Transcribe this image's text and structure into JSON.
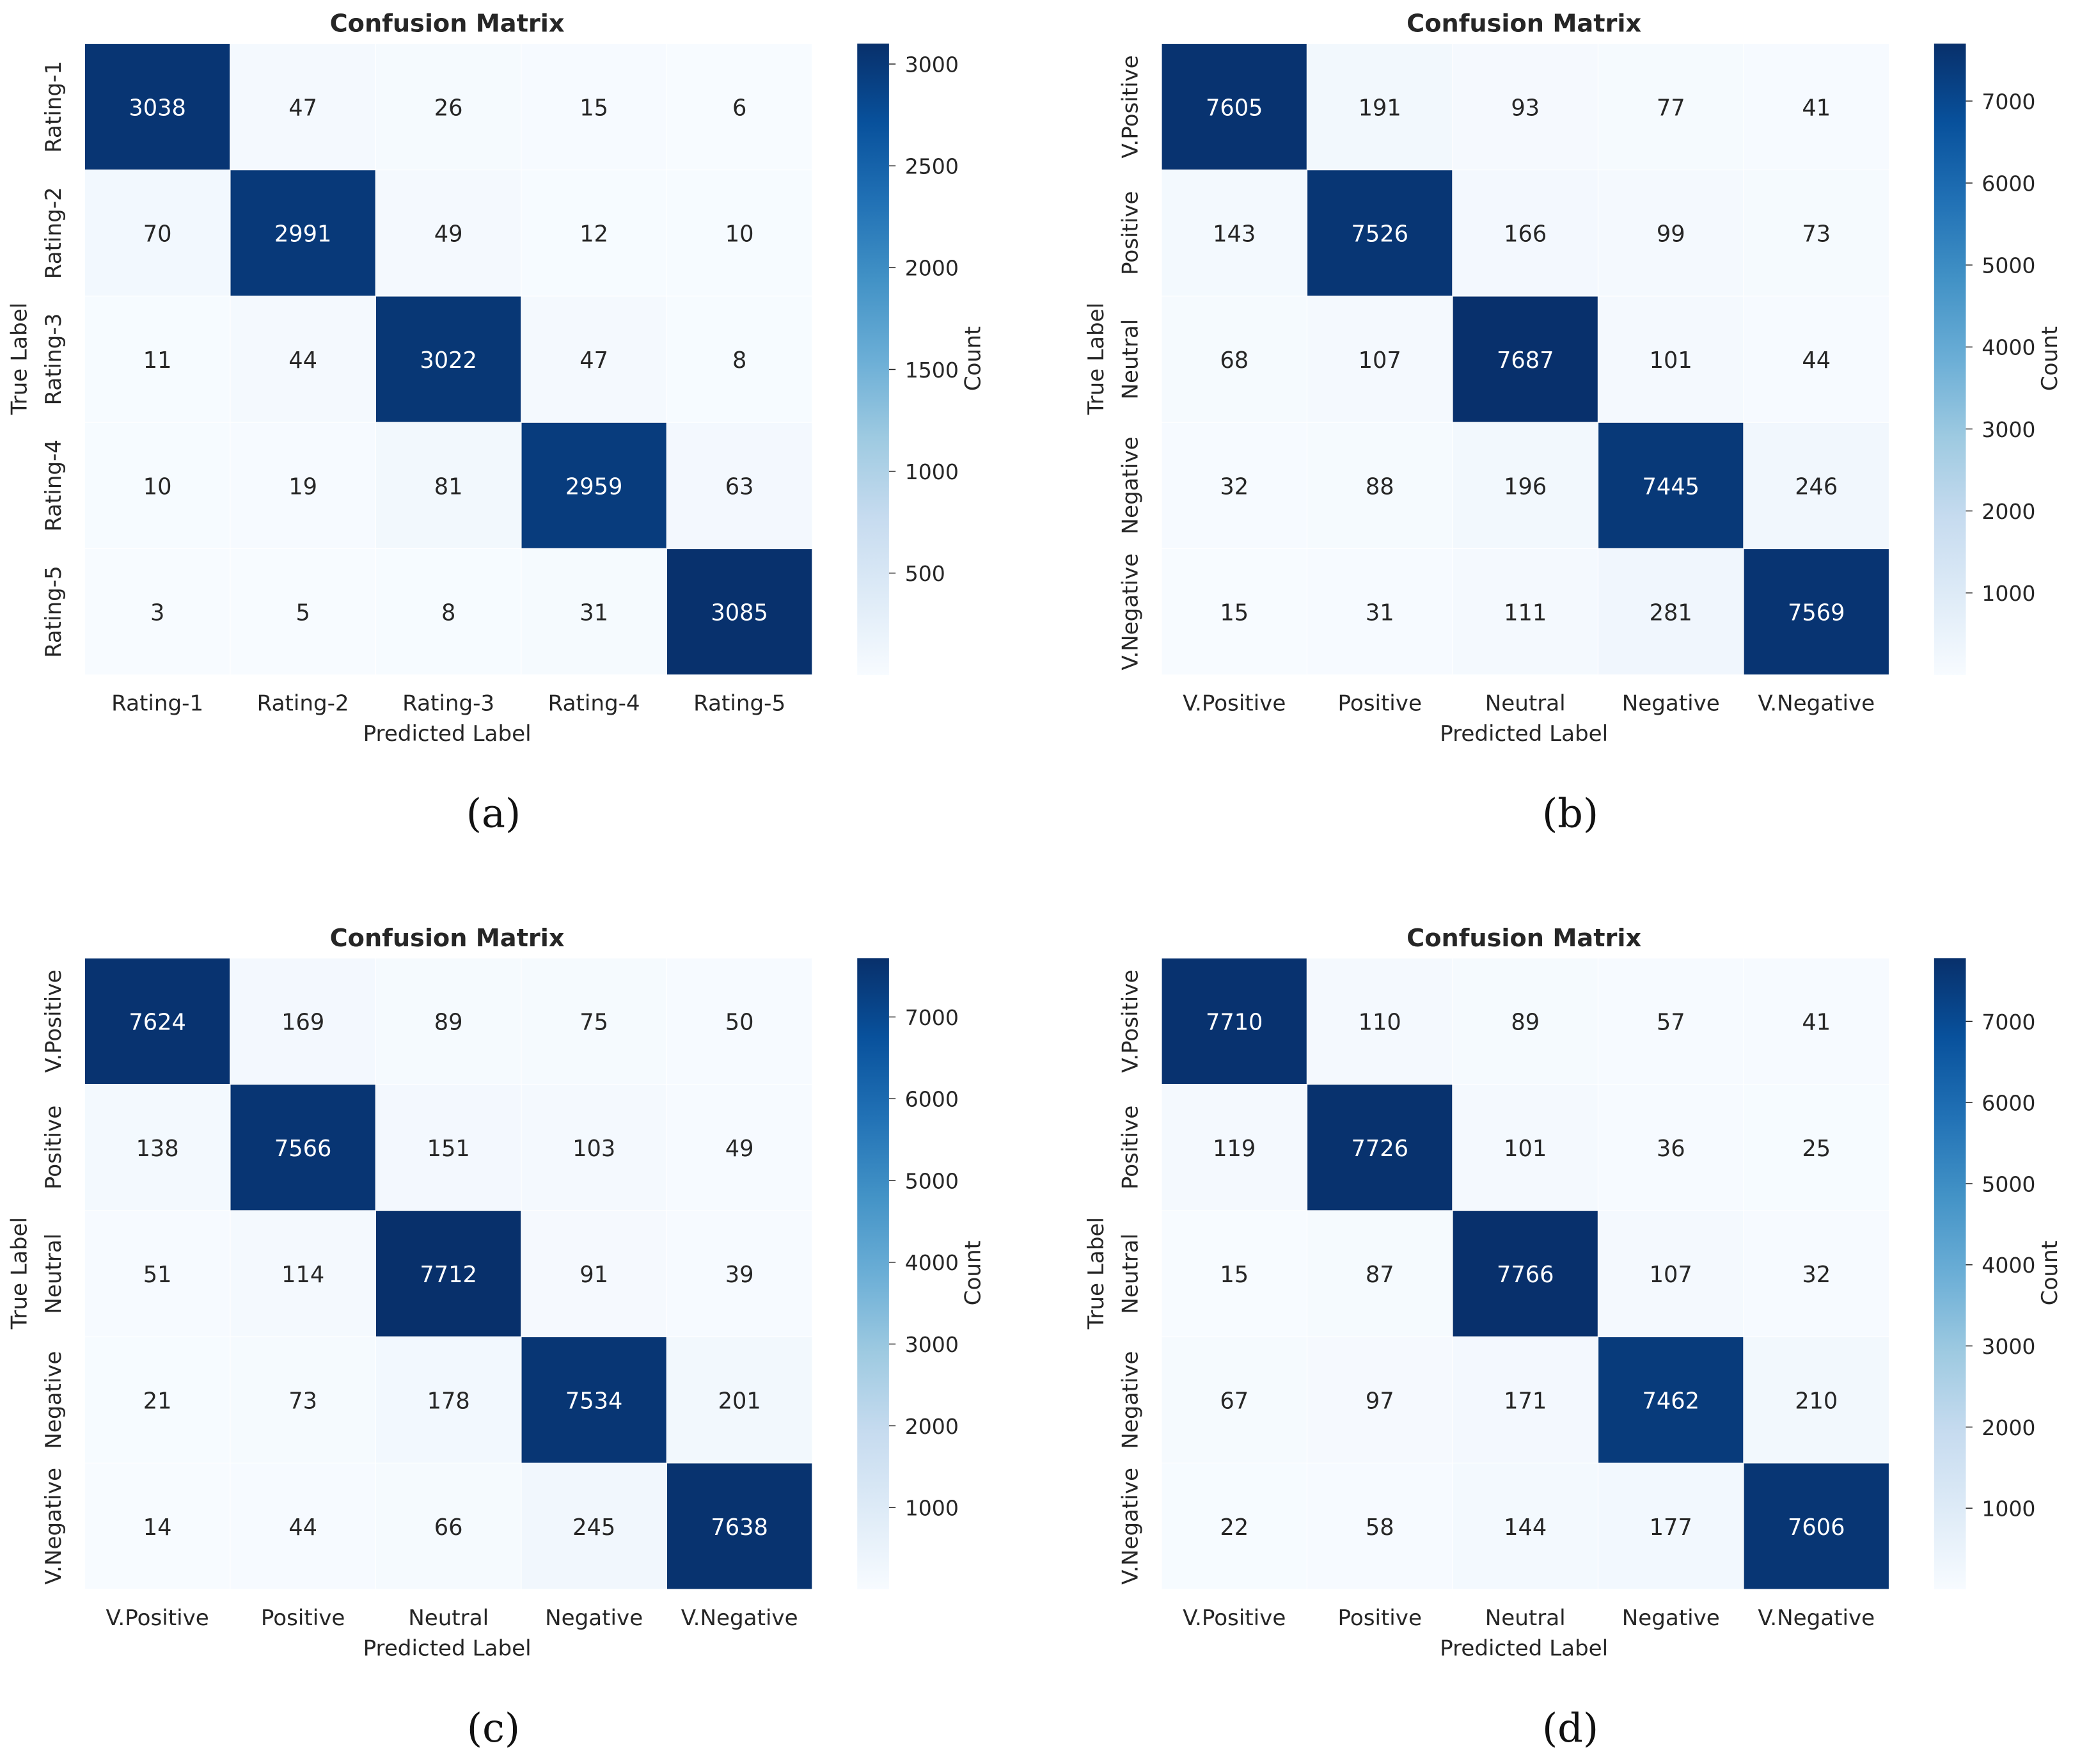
{
  "figure": {
    "panels": [
      "a",
      "b",
      "c",
      "d"
    ]
  },
  "chart_data": [
    {
      "type": "heatmap",
      "panel_label": "(a)",
      "title": "Confusion Matrix",
      "xlabel": "Predicted Label",
      "ylabel": "True Label",
      "colorbar_label": "Count",
      "colormap": "Blues",
      "x_categories": [
        "Rating-1",
        "Rating-2",
        "Rating-3",
        "Rating-4",
        "Rating-5"
      ],
      "y_categories": [
        "Rating-1",
        "Rating-2",
        "Rating-3",
        "Rating-4",
        "Rating-5"
      ],
      "values": [
        [
          3038,
          47,
          26,
          15,
          6
        ],
        [
          70,
          2991,
          49,
          12,
          10
        ],
        [
          11,
          44,
          3022,
          47,
          8
        ],
        [
          10,
          19,
          81,
          2959,
          63
        ],
        [
          3,
          5,
          8,
          31,
          3085
        ]
      ],
      "colorbar_ticks": [
        500,
        1000,
        1500,
        2000,
        2500,
        3000
      ],
      "color_range": [
        0,
        3100
      ]
    },
    {
      "type": "heatmap",
      "panel_label": "(b)",
      "title": "Confusion Matrix",
      "xlabel": "Predicted Label",
      "ylabel": "True Label",
      "colorbar_label": "Count",
      "colormap": "Blues",
      "x_categories": [
        "V.Positive",
        "Positive",
        "Neutral",
        "Negative",
        "V.Negative"
      ],
      "y_categories": [
        "V.Positive",
        "Positive",
        "Neutral",
        "Negative",
        "V.Negative"
      ],
      "values": [
        [
          7605,
          191,
          93,
          77,
          41
        ],
        [
          143,
          7526,
          166,
          99,
          73
        ],
        [
          68,
          107,
          7687,
          101,
          44
        ],
        [
          32,
          88,
          196,
          7445,
          246
        ],
        [
          15,
          31,
          111,
          281,
          7569
        ]
      ],
      "colorbar_ticks": [
        1000,
        2000,
        3000,
        4000,
        5000,
        6000,
        7000
      ],
      "color_range": [
        0,
        7700
      ]
    },
    {
      "type": "heatmap",
      "panel_label": "(c)",
      "title": "Confusion Matrix",
      "xlabel": "Predicted Label",
      "ylabel": "True Label",
      "colorbar_label": "Count",
      "colormap": "Blues",
      "x_categories": [
        "V.Positive",
        "Positive",
        "Neutral",
        "Negative",
        "V.Negative"
      ],
      "y_categories": [
        "V.Positive",
        "Positive",
        "Neutral",
        "Negative",
        "V.Negative"
      ],
      "values": [
        [
          7624,
          169,
          89,
          75,
          50
        ],
        [
          138,
          7566,
          151,
          103,
          49
        ],
        [
          51,
          114,
          7712,
          91,
          39
        ],
        [
          21,
          73,
          178,
          7534,
          201
        ],
        [
          14,
          44,
          66,
          245,
          7638
        ]
      ],
      "colorbar_ticks": [
        1000,
        2000,
        3000,
        4000,
        5000,
        6000,
        7000
      ],
      "color_range": [
        0,
        7720
      ]
    },
    {
      "type": "heatmap",
      "panel_label": "(d)",
      "title": "Confusion Matrix",
      "xlabel": "Predicted Label",
      "ylabel": "True Label",
      "colorbar_label": "Count",
      "colormap": "Blues",
      "x_categories": [
        "V.Positive",
        "Positive",
        "Neutral",
        "Negative",
        "V.Negative"
      ],
      "y_categories": [
        "V.Positive",
        "Positive",
        "Neutral",
        "Negative",
        "V.Negative"
      ],
      "values": [
        [
          7710,
          110,
          89,
          57,
          41
        ],
        [
          119,
          7726,
          101,
          36,
          25
        ],
        [
          15,
          87,
          7766,
          107,
          32
        ],
        [
          67,
          97,
          171,
          7462,
          210
        ],
        [
          22,
          58,
          144,
          177,
          7606
        ]
      ],
      "colorbar_ticks": [
        1000,
        2000,
        3000,
        4000,
        5000,
        6000,
        7000
      ],
      "color_range": [
        0,
        7780
      ]
    }
  ]
}
